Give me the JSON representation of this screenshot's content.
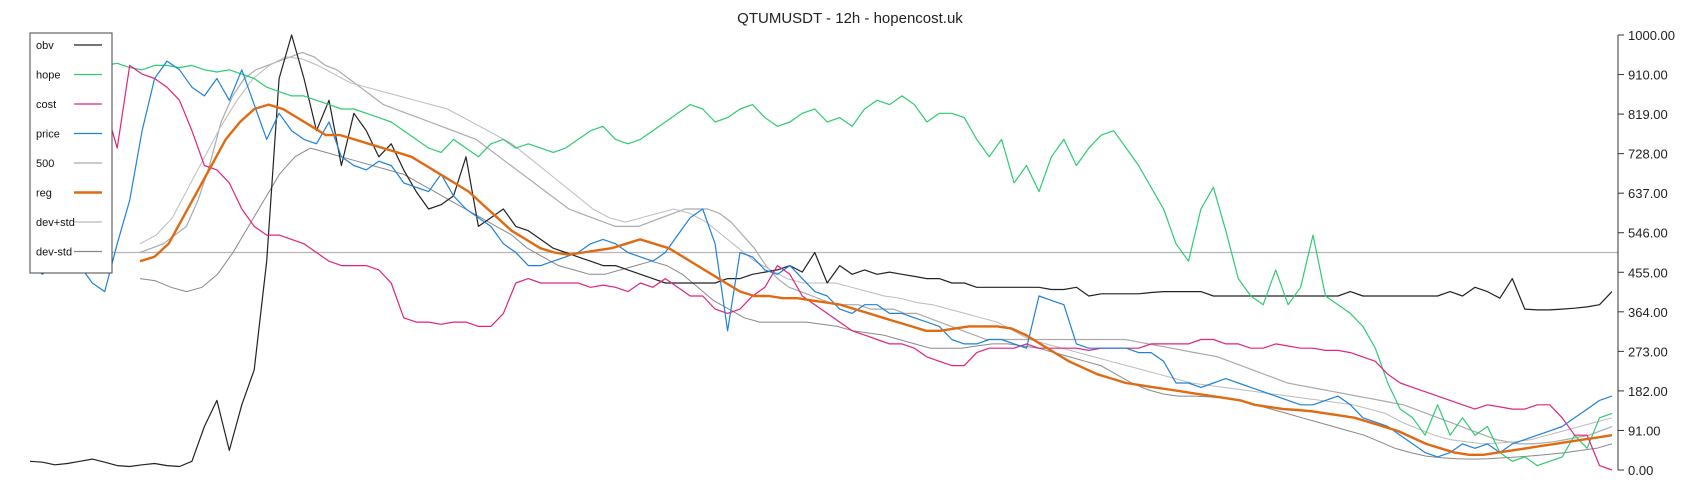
{
  "chart_data": {
    "type": "line",
    "title": "QTUMUSDT - 12h - hopencost.uk",
    "y_axis_side": "right",
    "ylim": [
      0,
      1000
    ],
    "yticks": [
      "1000.00",
      "910.00",
      "819.00",
      "728.00",
      "637.00",
      "546.00",
      "455.00",
      "364.00",
      "273.00",
      "182.00",
      "91.00",
      "0.00"
    ],
    "reference_line": 500,
    "legend_position": "top-left",
    "grid": false,
    "series": [
      {
        "name": "obv",
        "color": "#222222",
        "width": 1.2,
        "values": [
          20,
          18,
          12,
          15,
          20,
          25,
          18,
          10,
          8,
          12,
          15,
          10,
          8,
          20,
          100,
          160,
          45,
          150,
          230,
          480,
          900,
          1000,
          900,
          780,
          850,
          700,
          820,
          780,
          720,
          750,
          690,
          640,
          600,
          610,
          630,
          720,
          560,
          580,
          600,
          560,
          550,
          530,
          510,
          500,
          490,
          480,
          470,
          470,
          460,
          450,
          440,
          430,
          430,
          430,
          430,
          430,
          440,
          440,
          450,
          455,
          460,
          470,
          455,
          500,
          430,
          470,
          450,
          460,
          450,
          455,
          450,
          445,
          440,
          440,
          430,
          430,
          420,
          420,
          420,
          420,
          420,
          420,
          415,
          415,
          420,
          400,
          405,
          405,
          405,
          405,
          408,
          410,
          410,
          410,
          410,
          400,
          400,
          400,
          400,
          400,
          400,
          400,
          400,
          400,
          400,
          400,
          410,
          400,
          400,
          400,
          400,
          400,
          400,
          400,
          410,
          400,
          420,
          410,
          395,
          440,
          370,
          368,
          368,
          370,
          372,
          375,
          380,
          410
        ]
      },
      {
        "name": "hope",
        "color": "#2ecc71",
        "width": 1.2,
        "values": [
          900,
          920,
          920,
          910,
          920,
          930,
          930,
          935,
          925,
          920,
          930,
          930,
          925,
          930,
          920,
          915,
          920,
          910,
          900,
          880,
          870,
          860,
          860,
          850,
          840,
          830,
          830,
          820,
          810,
          800,
          780,
          760,
          740,
          730,
          760,
          740,
          720,
          750,
          760,
          740,
          750,
          740,
          730,
          740,
          760,
          780,
          790,
          760,
          750,
          760,
          780,
          800,
          820,
          840,
          830,
          800,
          810,
          830,
          840,
          810,
          790,
          800,
          820,
          830,
          800,
          810,
          790,
          830,
          850,
          840,
          860,
          840,
          800,
          820,
          820,
          810,
          760,
          720,
          760,
          660,
          700,
          640,
          720,
          760,
          700,
          740,
          770,
          780,
          740,
          700,
          650,
          600,
          520,
          480,
          600,
          650,
          550,
          440,
          400,
          380,
          460,
          380,
          420,
          540,
          400,
          380,
          360,
          330,
          280,
          200,
          140,
          120,
          80,
          150,
          80,
          120,
          80,
          100,
          40,
          20,
          30,
          10,
          20,
          30,
          80,
          50,
          120,
          130
        ]
      },
      {
        "name": "cost",
        "color": "#e0247f",
        "width": 1.2,
        "values": [
          930,
          940,
          960,
          980,
          1000,
          850,
          840,
          740,
          930,
          910,
          900,
          880,
          850,
          780,
          700,
          690,
          660,
          600,
          560,
          540,
          540,
          530,
          520,
          500,
          480,
          470,
          470,
          470,
          460,
          430,
          350,
          340,
          340,
          335,
          340,
          340,
          330,
          330,
          360,
          430,
          440,
          430,
          430,
          430,
          430,
          420,
          425,
          420,
          410,
          430,
          420,
          440,
          420,
          400,
          400,
          370,
          360,
          370,
          400,
          420,
          470,
          450,
          400,
          380,
          360,
          340,
          320,
          310,
          300,
          290,
          290,
          280,
          260,
          250,
          240,
          240,
          270,
          280,
          280,
          280,
          290,
          280,
          280,
          280,
          280,
          275,
          280,
          280,
          280,
          280,
          290,
          290,
          290,
          290,
          300,
          300,
          290,
          290,
          280,
          280,
          290,
          285,
          280,
          280,
          275,
          275,
          270,
          260,
          250,
          220,
          200,
          190,
          180,
          170,
          160,
          150,
          140,
          150,
          145,
          140,
          140,
          150,
          150,
          120,
          80,
          80,
          10,
          0
        ]
      },
      {
        "name": "price",
        "color": "#1f82d8",
        "width": 1.2,
        "values": [
          470,
          450,
          480,
          500,
          470,
          430,
          410,
          520,
          620,
          780,
          900,
          940,
          920,
          880,
          860,
          900,
          850,
          920,
          840,
          760,
          820,
          780,
          760,
          750,
          800,
          720,
          700,
          690,
          710,
          700,
          660,
          650,
          640,
          680,
          630,
          600,
          580,
          560,
          520,
          500,
          470,
          470,
          480,
          490,
          500,
          520,
          530,
          520,
          500,
          490,
          480,
          500,
          540,
          580,
          600,
          520,
          320,
          500,
          490,
          460,
          450,
          470,
          440,
          410,
          400,
          370,
          360,
          380,
          380,
          360,
          360,
          350,
          340,
          330,
          300,
          290,
          290,
          300,
          300,
          290,
          280,
          400,
          390,
          380,
          290,
          280,
          280,
          280,
          280,
          270,
          270,
          250,
          200,
          200,
          190,
          200,
          210,
          200,
          190,
          180,
          170,
          160,
          150,
          150,
          160,
          170,
          150,
          120,
          110,
          100,
          80,
          60,
          40,
          30,
          40,
          60,
          50,
          60,
          40,
          60,
          70,
          80,
          90,
          100,
          120,
          140,
          160,
          170
        ]
      },
      {
        "name": "500",
        "color": "#aaaaaa",
        "width": 1.2,
        "values": [
          500,
          510,
          520,
          540,
          560,
          620,
          700,
          800,
          860,
          900,
          920,
          930,
          940,
          950,
          960,
          950,
          930,
          920,
          900,
          880,
          860,
          840,
          830,
          820,
          810,
          800,
          790,
          780,
          770,
          760,
          740,
          720,
          700,
          680,
          660,
          640,
          620,
          600,
          590,
          580,
          570,
          560,
          560,
          560,
          570,
          580,
          590,
          600,
          600,
          600,
          590,
          570,
          540,
          510,
          470,
          440,
          420,
          410,
          400,
          390,
          380,
          380,
          380,
          370,
          370,
          370,
          360,
          360,
          350,
          340,
          330,
          320,
          310,
          300,
          300,
          300,
          300,
          300,
          300,
          300,
          300,
          300,
          300,
          300,
          300,
          300,
          295,
          290,
          285,
          280,
          275,
          270,
          265,
          260,
          250,
          240,
          230,
          220,
          210,
          200,
          195,
          190,
          185,
          180,
          175,
          170,
          165,
          160,
          155,
          150,
          140,
          130,
          120,
          110,
          100,
          90,
          80,
          70,
          65,
          60,
          60,
          62,
          65,
          70,
          75,
          80,
          90,
          100
        ]
      },
      {
        "name": "reg",
        "color": "#e06a12",
        "width": 2.4,
        "values": [
          480,
          490,
          520,
          580,
          640,
          700,
          760,
          800,
          830,
          840,
          830,
          810,
          790,
          770,
          770,
          760,
          750,
          740,
          730,
          720,
          700,
          680,
          660,
          640,
          610,
          580,
          550,
          530,
          510,
          500,
          495,
          500,
          505,
          510,
          520,
          530,
          520,
          510,
          490,
          470,
          450,
          430,
          410,
          400,
          400,
          395,
          395,
          390,
          385,
          380,
          370,
          360,
          350,
          340,
          330,
          320,
          320,
          325,
          330,
          330,
          330,
          325,
          310,
          290,
          270,
          250,
          235,
          220,
          210,
          200,
          195,
          190,
          185,
          180,
          175,
          170,
          165,
          160,
          150,
          145,
          140,
          138,
          135,
          130,
          125,
          120,
          110,
          100,
          90,
          75,
          60,
          50,
          40,
          35,
          35,
          40,
          45,
          50,
          55,
          60,
          65,
          70,
          75,
          80
        ]
      },
      {
        "name": "dev+std",
        "color": "#bbbbbb",
        "width": 1.0,
        "values": [
          520,
          540,
          580,
          650,
          720,
          790,
          850,
          900,
          930,
          950,
          945,
          930,
          910,
          890,
          880,
          870,
          860,
          850,
          840,
          830,
          810,
          790,
          770,
          750,
          720,
          690,
          660,
          630,
          600,
          580,
          570,
          580,
          590,
          600,
          590,
          570,
          540,
          510,
          480,
          460,
          440,
          430,
          430,
          430,
          420,
          410,
          400,
          395,
          385,
          380,
          370,
          360,
          350,
          340,
          320,
          300,
          290,
          280,
          270,
          260,
          250,
          240,
          230,
          220,
          210,
          200,
          195,
          190,
          185,
          180,
          175,
          170,
          165,
          160,
          155,
          150,
          140,
          130,
          110,
          95,
          80,
          70,
          65,
          60,
          62,
          65,
          70,
          80,
          90,
          100,
          110,
          120
        ]
      },
      {
        "name": "dev-std",
        "color": "#888888",
        "width": 1.0,
        "values": [
          440,
          435,
          420,
          410,
          420,
          450,
          500,
          560,
          620,
          680,
          720,
          740,
          730,
          720,
          710,
          700,
          690,
          680,
          660,
          640,
          620,
          600,
          580,
          560,
          540,
          510,
          490,
          470,
          460,
          450,
          450,
          460,
          470,
          480,
          470,
          450,
          420,
          390,
          370,
          350,
          340,
          340,
          340,
          340,
          335,
          330,
          320,
          315,
          310,
          300,
          290,
          280,
          280,
          280,
          285,
          290,
          290,
          285,
          280,
          270,
          260,
          250,
          240,
          220,
          200,
          185,
          175,
          170,
          170,
          168,
          165,
          160,
          150,
          140,
          130,
          120,
          110,
          100,
          90,
          80,
          65,
          50,
          40,
          32,
          28,
          26,
          25,
          26,
          28,
          30,
          33,
          36,
          40,
          45,
          50,
          60
        ]
      }
    ]
  }
}
